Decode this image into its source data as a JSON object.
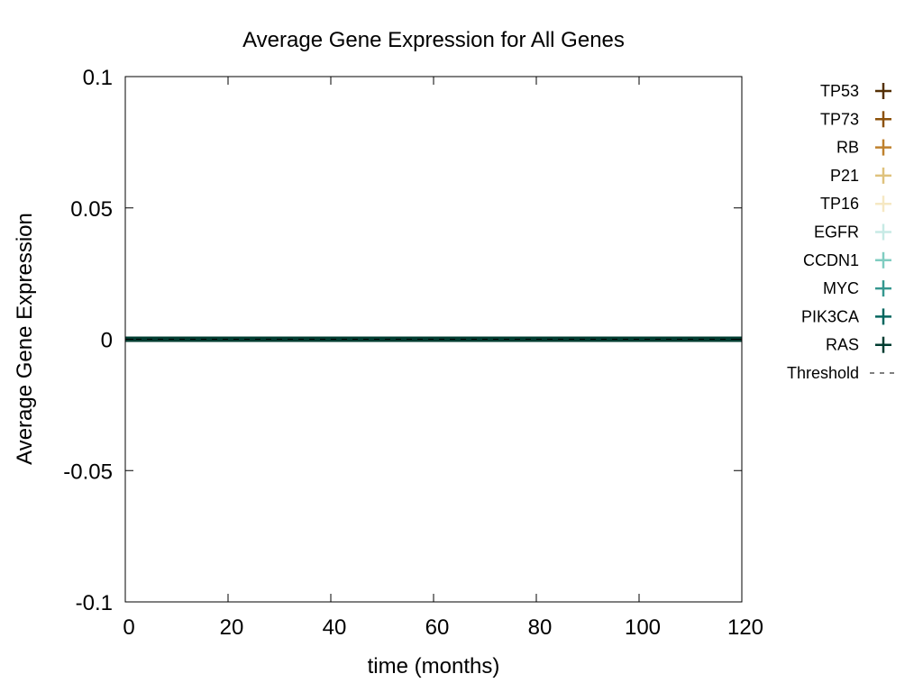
{
  "chart_data": {
    "type": "line",
    "title": "Average Gene Expression for All Genes",
    "xlabel": "time (months)",
    "ylabel": "Average Gene Expression",
    "xlim": [
      0,
      120
    ],
    "ylim": [
      -0.1,
      0.1
    ],
    "xticks": [
      0,
      20,
      40,
      60,
      80,
      100,
      120
    ],
    "xtick_labels": [
      "0",
      "20",
      "40",
      "60",
      "80",
      "100",
      "120"
    ],
    "yticks": [
      0.1,
      0.05,
      0,
      -0.05,
      -0.1
    ],
    "ytick_labels": [
      "0.1",
      "0.05",
      "0",
      "-0.05",
      "-0.1"
    ],
    "grid": false,
    "legend_position": "outside-right",
    "x": [
      0,
      120
    ],
    "series": [
      {
        "name": "TP53",
        "color": "#543005",
        "marker": "plus",
        "values": [
          0,
          0
        ]
      },
      {
        "name": "TP73",
        "color": "#8c510a",
        "marker": "plus",
        "values": [
          0,
          0
        ]
      },
      {
        "name": "RB",
        "color": "#bf812d",
        "marker": "plus",
        "values": [
          0,
          0
        ]
      },
      {
        "name": "P21",
        "color": "#dfc27d",
        "marker": "plus",
        "values": [
          0,
          0
        ]
      },
      {
        "name": "TP16",
        "color": "#f6e8c3",
        "marker": "plus",
        "values": [
          0,
          0
        ]
      },
      {
        "name": "EGFR",
        "color": "#c7eae5",
        "marker": "plus",
        "values": [
          0,
          0
        ]
      },
      {
        "name": "CCDN1",
        "color": "#80cdc1",
        "marker": "plus",
        "values": [
          0,
          0
        ]
      },
      {
        "name": "MYC",
        "color": "#35978f",
        "marker": "plus",
        "values": [
          0,
          0
        ]
      },
      {
        "name": "PIK3CA",
        "color": "#01665e",
        "marker": "plus",
        "values": [
          0,
          0
        ]
      },
      {
        "name": "RAS",
        "color": "#003c30",
        "marker": "plus",
        "values": [
          0,
          0
        ]
      },
      {
        "name": "Threshold",
        "color": "#000000",
        "style": "dashed",
        "values": [
          0,
          0
        ]
      }
    ]
  }
}
